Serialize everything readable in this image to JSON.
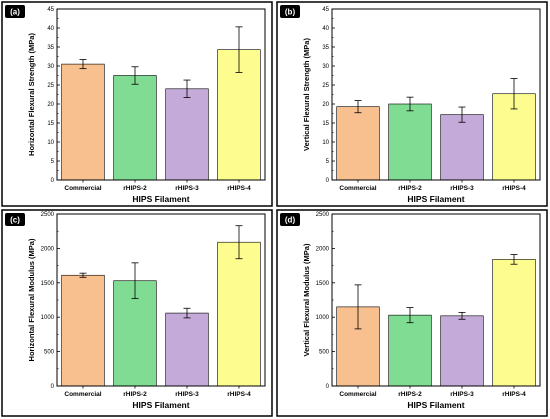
{
  "colors": [
    "#f9c08f",
    "#80dc92",
    "#c4aad8",
    "#fdfd8f"
  ],
  "chart_data": [
    {
      "id": "a",
      "panel_tag": "(a)",
      "type": "bar",
      "categories": [
        "Commercial",
        "rHIPS-2",
        "rHIPS-3",
        "rHIPS-4"
      ],
      "values": [
        30.5,
        27.5,
        24,
        34.3
      ],
      "errors": [
        1.2,
        2.3,
        2.3,
        6
      ],
      "ylim": [
        0,
        45
      ],
      "yticks": [
        0,
        5,
        10,
        15,
        20,
        25,
        30,
        35,
        40,
        45
      ],
      "ylabel": "Horizontal Flexural Strength (MPa)",
      "xlabel": "HIPS Filament"
    },
    {
      "id": "b",
      "panel_tag": "(b)",
      "type": "bar",
      "categories": [
        "Commercial",
        "rHIPS-2",
        "rHIPS-3",
        "rHIPS-4"
      ],
      "values": [
        19.3,
        20,
        17.2,
        22.7
      ],
      "errors": [
        1.6,
        1.8,
        2,
        4
      ],
      "ylim": [
        0,
        45
      ],
      "yticks": [
        0,
        5,
        10,
        15,
        20,
        25,
        30,
        35,
        40,
        45
      ],
      "ylabel": "Vertical Flexural Strength (MPa)",
      "xlabel": "HIPS Filament"
    },
    {
      "id": "c",
      "panel_tag": "(c)",
      "type": "bar",
      "categories": [
        "Commercial",
        "rHIPS-2",
        "rHIPS-3",
        "rHIPS-4"
      ],
      "values": [
        1610,
        1530,
        1060,
        2090
      ],
      "errors": [
        30,
        260,
        70,
        240
      ],
      "ylim": [
        0,
        2500
      ],
      "yticks": [
        0,
        500,
        1000,
        1500,
        2000,
        2500
      ],
      "ylabel": "Horizontal Flexural Modulus (MPa)",
      "xlabel": "HIPS Filament"
    },
    {
      "id": "d",
      "panel_tag": "(d)",
      "type": "bar",
      "categories": [
        "Commercial",
        "rHIPS-2",
        "rHIPS-3",
        "rHIPS-4"
      ],
      "values": [
        1150,
        1030,
        1020,
        1840
      ],
      "errors": [
        320,
        110,
        50,
        70
      ],
      "ylim": [
        0,
        2500
      ],
      "yticks": [
        0,
        500,
        1000,
        1500,
        2000,
        2500
      ],
      "ylabel": "Vertical Flexural Modulus (MPa)",
      "xlabel": "HIPS Filament"
    }
  ]
}
